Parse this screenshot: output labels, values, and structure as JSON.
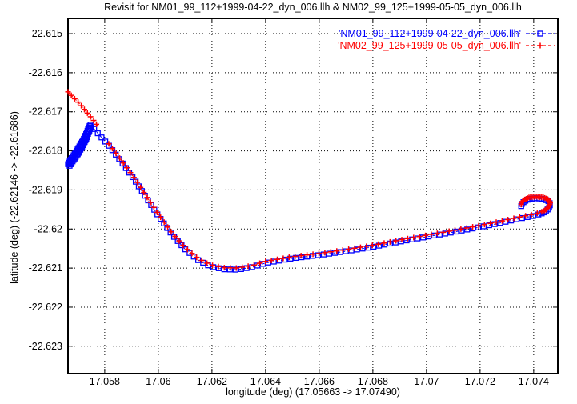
{
  "title": "Revisit for NM01_99_112+1999-04-22_dyn_006.llh & NM02_99_125+1999-05-05_dyn_006.llh",
  "axes": {
    "xlabel": "longitude (deg) (17.05663 -> 17.07490)",
    "ylabel": "latitude (deg) (-22.62146 -> -22.61686)"
  },
  "legend": {
    "entries": [
      {
        "label": "'NM01_99_112+1999-04-22_dyn_006.llh'",
        "color": "#0000ff",
        "marker": "square"
      },
      {
        "label": "'NM02_99_125+1999-05-05_dyn_006.llh'",
        "color": "#ff0000",
        "marker": "plus"
      }
    ]
  },
  "chart_data": {
    "type": "line",
    "title": "Revisit for NM01_99_112+1999-04-22_dyn_006.llh & NM02_99_125+1999-05-05_dyn_006.llh",
    "xlabel": "longitude (deg) (17.05663 -> 17.07490)",
    "ylabel": "latitude (deg) (-22.62146 -> -22.61686)",
    "xlim": [
      17.05663,
      17.0749
    ],
    "ylim": [
      -22.6237,
      -22.61461
    ],
    "grid": true,
    "legend_position": "top-right-inside",
    "x_ticks": {
      "values": [
        17.058,
        17.06,
        17.062,
        17.064,
        17.066,
        17.068,
        17.07,
        17.072,
        17.074
      ],
      "labels": [
        "17.058",
        "17.06",
        "17.062",
        "17.064",
        "17.066",
        "17.068",
        "17.07",
        "17.072",
        "17.074"
      ]
    },
    "y_ticks": {
      "values": [
        -22.615,
        -22.616,
        -22.617,
        -22.618,
        -22.619,
        -22.62,
        -22.621,
        -22.622,
        -22.623
      ],
      "labels": [
        "-22.615",
        "-22.616",
        "-22.617",
        "-22.618",
        "-22.619",
        "-22.62",
        "-22.621",
        "-22.622",
        "-22.623"
      ]
    },
    "series": [
      {
        "name": "'NM01_99_112+1999-04-22_dyn_006.llh'",
        "color": "#0000ff",
        "marker": "square",
        "linestyle": "dashed",
        "segments": [
          {
            "marker_spacing_px": 2.2,
            "points": [
              [
                17.05663,
                -22.61832
              ],
              [
                17.05678,
                -22.61815
              ],
              [
                17.05693,
                -22.61801
              ],
              [
                17.05708,
                -22.61784
              ],
              [
                17.0572,
                -22.6177
              ],
              [
                17.05729,
                -22.61758
              ],
              [
                17.05735,
                -22.61748
              ],
              [
                17.05741,
                -22.61737
              ],
              [
                17.05747,
                -22.61731
              ]
            ]
          },
          {
            "marker_spacing_px": 2.2,
            "points": [
              [
                17.05669,
                -22.61836
              ],
              [
                17.05684,
                -22.61821
              ],
              [
                17.05699,
                -22.61807
              ],
              [
                17.05711,
                -22.61793
              ],
              [
                17.05723,
                -22.61778
              ],
              [
                17.05732,
                -22.61766
              ],
              [
                17.05738,
                -22.61754
              ],
              [
                17.05744,
                -22.61744
              ],
              [
                17.0575,
                -22.61735
              ]
            ]
          },
          {
            "marker_spacing_px": 7,
            "points": [
              [
                17.05747,
                -22.61731
              ],
              [
                17.05773,
                -22.61752
              ],
              [
                17.05815,
                -22.61784
              ],
              [
                17.05863,
                -22.61827
              ],
              [
                17.05911,
                -22.61872
              ],
              [
                17.05959,
                -22.61922
              ],
              [
                17.06003,
                -22.61967
              ],
              [
                17.06051,
                -22.62012
              ],
              [
                17.06099,
                -22.62049
              ],
              [
                17.06147,
                -22.62077
              ],
              [
                17.06194,
                -22.62094
              ],
              [
                17.06245,
                -22.62101
              ],
              [
                17.06296,
                -22.62102
              ],
              [
                17.06353,
                -22.62095
              ],
              [
                17.064,
                -22.62085
              ],
              [
                17.06499,
                -22.62073
              ],
              [
                17.06597,
                -22.62065
              ],
              [
                17.06699,
                -22.62055
              ],
              [
                17.06797,
                -22.62044
              ],
              [
                17.06902,
                -22.6203
              ],
              [
                17.07,
                -22.62018
              ],
              [
                17.07099,
                -22.62006
              ],
              [
                17.072,
                -22.61993
              ],
              [
                17.07278,
                -22.61982
              ],
              [
                17.07356,
                -22.6197
              ],
              [
                17.07403,
                -22.61964
              ],
              [
                17.0743,
                -22.61958
              ]
            ]
          },
          {
            "marker_spacing_px": 3,
            "points": [
              [
                17.0743,
                -22.61958
              ],
              [
                17.07445,
                -22.61953
              ],
              [
                17.07457,
                -22.61944
              ],
              [
                17.07462,
                -22.61934
              ],
              [
                17.07454,
                -22.61926
              ],
              [
                17.07436,
                -22.61921
              ],
              [
                17.07409,
                -22.61919
              ],
              [
                17.07383,
                -22.61921
              ],
              [
                17.07365,
                -22.61927
              ],
              [
                17.07354,
                -22.61935
              ],
              [
                17.07353,
                -22.61942
              ]
            ]
          }
        ]
      },
      {
        "name": "'NM02_99_125+1999-05-05_dyn_006.llh'",
        "color": "#ff0000",
        "marker": "plus",
        "linestyle": "dashed",
        "segments": [
          {
            "marker_spacing_px": 6,
            "points": [
              [
                17.05663,
                -22.61651
              ],
              [
                17.05681,
                -22.61664
              ],
              [
                17.05699,
                -22.61676
              ],
              [
                17.05717,
                -22.6169
              ],
              [
                17.05735,
                -22.61705
              ],
              [
                17.0575,
                -22.61717
              ],
              [
                17.05762,
                -22.61727
              ],
              [
                17.05779,
                -22.61744
              ]
            ]
          },
          {
            "marker_spacing_px": 7.5,
            "points": [
              [
                17.05815,
                -22.61784
              ],
              [
                17.05863,
                -22.61827
              ],
              [
                17.05911,
                -22.61872
              ],
              [
                17.05959,
                -22.61922
              ],
              [
                17.06003,
                -22.61967
              ],
              [
                17.06051,
                -22.62012
              ],
              [
                17.06099,
                -22.62049
              ],
              [
                17.06147,
                -22.62077
              ],
              [
                17.06194,
                -22.62094
              ],
              [
                17.06245,
                -22.62101
              ],
              [
                17.06296,
                -22.62102
              ],
              [
                17.06353,
                -22.62095
              ],
              [
                17.064,
                -22.62085
              ],
              [
                17.06499,
                -22.62073
              ],
              [
                17.06597,
                -22.62065
              ],
              [
                17.06699,
                -22.62055
              ],
              [
                17.06797,
                -22.62044
              ],
              [
                17.06902,
                -22.6203
              ],
              [
                17.07,
                -22.62018
              ],
              [
                17.07099,
                -22.62006
              ],
              [
                17.072,
                -22.61993
              ],
              [
                17.07278,
                -22.61982
              ],
              [
                17.07356,
                -22.6197
              ],
              [
                17.07403,
                -22.61964
              ],
              [
                17.0743,
                -22.61958
              ]
            ]
          },
          {
            "marker_spacing_px": 2,
            "points": [
              [
                17.0743,
                -22.61958
              ],
              [
                17.07445,
                -22.61953
              ],
              [
                17.07457,
                -22.61944
              ],
              [
                17.07462,
                -22.61934
              ],
              [
                17.07454,
                -22.61926
              ],
              [
                17.07436,
                -22.61921
              ],
              [
                17.07409,
                -22.61919
              ],
              [
                17.07383,
                -22.61921
              ],
              [
                17.07365,
                -22.61927
              ],
              [
                17.07354,
                -22.61935
              ],
              [
                17.07353,
                -22.61942
              ]
            ]
          }
        ]
      }
    ]
  }
}
